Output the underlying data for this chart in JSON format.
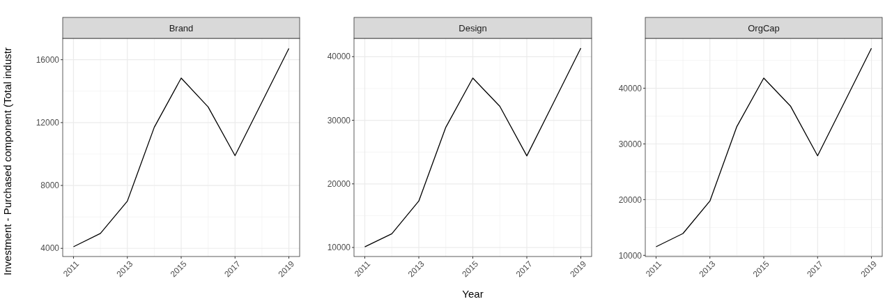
{
  "chart_data": [
    {
      "type": "line",
      "title": "Brand",
      "ylabel": "Investment - Purchased component (Total industr",
      "x": [
        2011,
        2012,
        2013,
        2014,
        2015,
        2016,
        2017,
        2018,
        2019
      ],
      "series": [
        {
          "color": "#000000",
          "values": [
            4100,
            4950,
            7000,
            11700,
            14830,
            13000,
            9900,
            13300,
            16720
          ]
        }
      ],
      "xlim": [
        2010.6,
        2019.4
      ],
      "xticks": [
        2011,
        2013,
        2015,
        2017,
        2019
      ],
      "ylim": [
        3480,
        17360
      ],
      "yticks": [
        4000,
        8000,
        12000,
        16000
      ],
      "grid": true
    },
    {
      "type": "line",
      "title": "Design",
      "xlabel": "Year",
      "x": [
        2011,
        2012,
        2013,
        2014,
        2015,
        2016,
        2017,
        2018,
        2019
      ],
      "series": [
        {
          "color": "#000000",
          "values": [
            10100,
            12150,
            17300,
            28900,
            36640,
            32200,
            24400,
            32850,
            41350
          ]
        }
      ],
      "xlim": [
        2010.6,
        2019.4
      ],
      "xticks": [
        2011,
        2013,
        2015,
        2017,
        2019
      ],
      "ylim": [
        8580,
        42880
      ],
      "yticks": [
        10000,
        20000,
        30000,
        40000
      ],
      "grid": true
    },
    {
      "type": "line",
      "title": "OrgCap",
      "x": [
        2011,
        2012,
        2013,
        2014,
        2015,
        2016,
        2017,
        2018,
        2019
      ],
      "series": [
        {
          "color": "#000000",
          "values": [
            11540,
            13920,
            19750,
            33120,
            41830,
            36750,
            27870,
            37500,
            47170
          ]
        }
      ],
      "xlim": [
        2010.6,
        2019.4
      ],
      "xticks": [
        2011,
        2013,
        2015,
        2017,
        2019
      ],
      "ylim": [
        9790,
        48960
      ],
      "yticks": [
        10000,
        20000,
        30000,
        40000
      ],
      "grid": true
    }
  ]
}
